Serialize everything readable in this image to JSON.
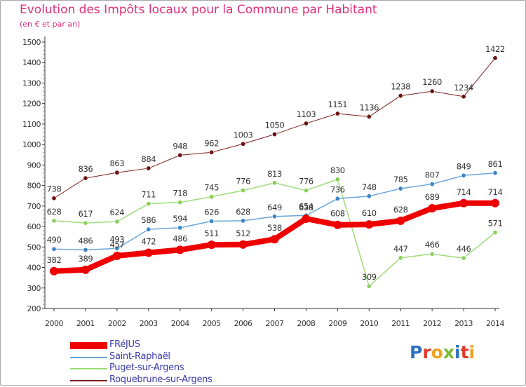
{
  "title": "Evolution des Impôts locaux pour la Commune par Habitant",
  "subtitle": "(en € et par an)",
  "logo": {
    "text": "Proxiti",
    "letters": [
      {
        "ch": "P",
        "color": "#2e6fc2"
      },
      {
        "ch": "r",
        "color": "#e3392b"
      },
      {
        "ch": "o",
        "color": "#f0a21a"
      },
      {
        "ch": "x",
        "color": "#7ab833"
      },
      {
        "ch": "i",
        "color": "#2e6fc2"
      },
      {
        "ch": "t",
        "color": "#e3392b"
      },
      {
        "ch": "i",
        "color": "#f0a21a"
      }
    ]
  },
  "chart_data": {
    "type": "line",
    "x": [
      2000,
      2001,
      2002,
      2003,
      2004,
      2005,
      2006,
      2007,
      2008,
      2009,
      2010,
      2011,
      2012,
      2013,
      2014
    ],
    "xlabel": "",
    "ylabel": "",
    "ylim": [
      200,
      1500
    ],
    "yticks": [
      200,
      300,
      400,
      500,
      600,
      700,
      800,
      900,
      1000,
      1100,
      1200,
      1300,
      1400,
      1500
    ],
    "grid": false,
    "legend_position": "bottom-left",
    "series": [
      {
        "name": "Roquebrune-sur-Argens",
        "color": "#7a1f1f",
        "dot_color": "#6b1414",
        "width": 1,
        "values": [
          738,
          836,
          863,
          884,
          948,
          962,
          1003,
          1050,
          1103,
          1151,
          1136,
          1238,
          1260,
          1234,
          1422
        ],
        "labels": [
          "738",
          "836",
          "863",
          "884",
          "948",
          "962",
          "1003",
          "1050",
          "1103",
          "1151",
          "1136",
          "1238",
          "1260",
          "1234",
          "1422"
        ]
      },
      {
        "name": "Puget-sur-Argens",
        "color": "#9edb7a",
        "dot_color": "#8ad05a",
        "width": 1.5,
        "values": [
          628,
          617,
          624,
          711,
          718,
          745,
          776,
          813,
          776,
          830,
          309,
          447,
          466,
          446,
          571
        ],
        "labels": [
          "628",
          "617",
          "624",
          "711",
          "718",
          "745",
          "776",
          "813",
          "776",
          "830",
          "309",
          "447",
          "466",
          "446",
          "571"
        ]
      },
      {
        "name": "Saint-Raphaël",
        "color": "#6aa6d8",
        "dot_color": "#3c86c8",
        "width": 1.5,
        "values": [
          490,
          486,
          493,
          586,
          594,
          626,
          628,
          649,
          654,
          736,
          748,
          785,
          807,
          849,
          861
        ],
        "labels": [
          "490",
          "486",
          "493",
          "586",
          "594",
          "626",
          "628",
          "649",
          "654",
          "736",
          "748",
          "785",
          "807",
          "849",
          "861"
        ]
      },
      {
        "name": "FRéJUS",
        "color": "#ee0000",
        "dot_color": "#ee0000",
        "width": 8,
        "values": [
          382,
          389,
          457,
          472,
          486,
          511,
          512,
          538,
          638,
          608,
          610,
          628,
          689,
          714,
          714
        ],
        "labels": [
          "382",
          "389",
          "457",
          "472",
          "486",
          "511",
          "512",
          "538",
          "638",
          "608",
          "610",
          "628",
          "689",
          "714",
          "714"
        ]
      }
    ],
    "legend_order": [
      "FRéJUS",
      "Saint-Raphaël",
      "Puget-sur-Argens",
      "Roquebrune-sur-Argens"
    ]
  }
}
